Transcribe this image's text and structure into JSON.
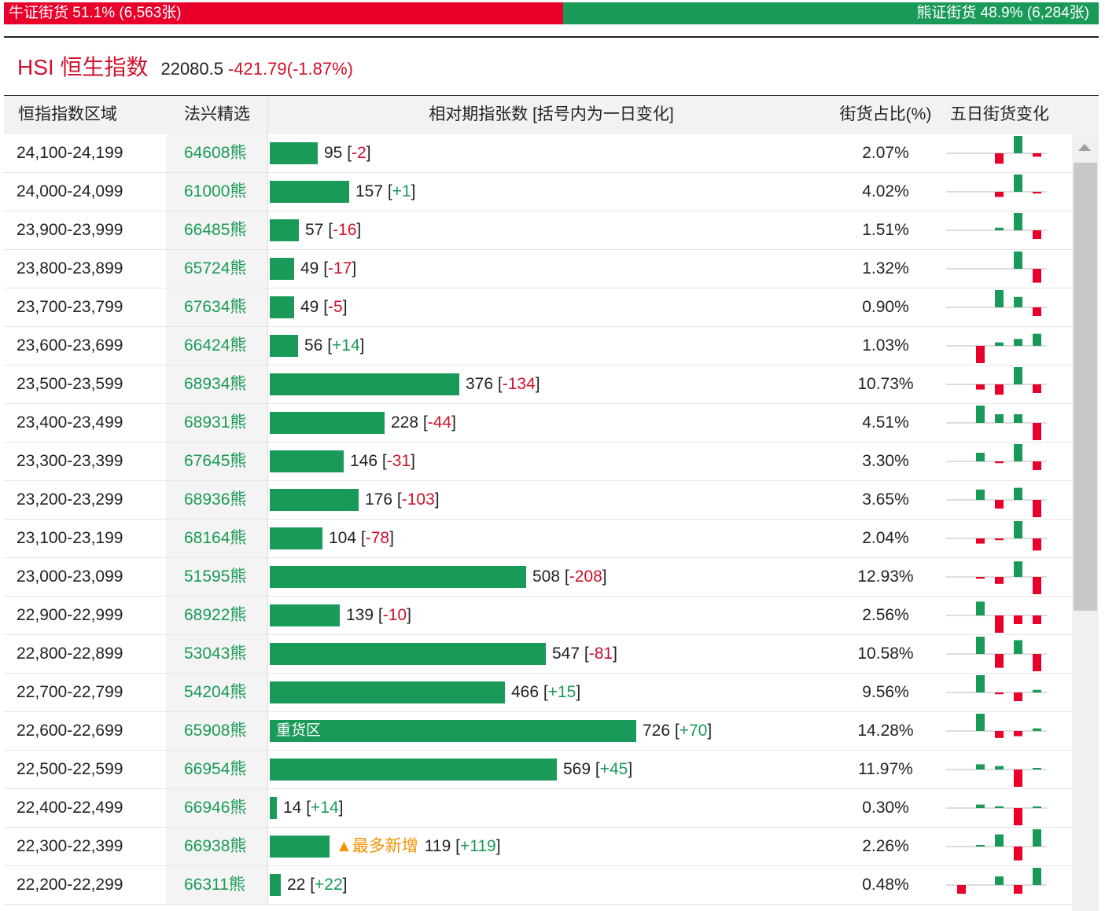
{
  "ratio": {
    "bull_label": "牛证街货 51.1% (6,563张)",
    "bear_label": "熊证街货 48.9% (6,284张)",
    "bull_pct": 51.1,
    "bull_color": "#e8002a",
    "bear_color": "#1a9a58"
  },
  "index": {
    "name": "HSI 恒生指数",
    "price": "22080.5",
    "change": "-421.79(-1.87%)"
  },
  "headers": {
    "range": "恒指指数区域",
    "stock": "法兴精选",
    "bar": "相对期指张数 [括号内为一日变化]",
    "pct": "街货占比(%)",
    "five": "五日街货变化"
  },
  "bar_scale_max": 726,
  "rows": [
    {
      "range": "24,100-24,199",
      "stock": "64608熊",
      "count": 95,
      "count_text": "95",
      "change": "-2",
      "pct": "2.07%",
      "five": [
        0,
        0,
        -0.6,
        1,
        -0.2
      ]
    },
    {
      "range": "24,000-24,099",
      "stock": "61000熊",
      "count": 157,
      "count_text": "157",
      "change": "+1",
      "pct": "4.02%",
      "five": [
        0,
        0,
        -0.3,
        1,
        -0.1
      ]
    },
    {
      "range": "23,900-23,999",
      "stock": "66485熊",
      "count": 57,
      "count_text": "57",
      "change": "-16",
      "pct": "1.51%",
      "five": [
        0,
        0,
        0.15,
        1,
        -0.5
      ]
    },
    {
      "range": "23,800-23,899",
      "stock": "65724熊",
      "count": 49,
      "count_text": "49",
      "change": "-17",
      "pct": "1.32%",
      "five": [
        0,
        0,
        0,
        1,
        -0.8
      ]
    },
    {
      "range": "23,700-23,799",
      "stock": "67634熊",
      "count": 49,
      "count_text": "49",
      "change": "-5",
      "pct": "0.90%",
      "five": [
        0,
        0,
        1,
        0.6,
        -0.5
      ]
    },
    {
      "range": "23,600-23,699",
      "stock": "66424熊",
      "count": 56,
      "count_text": "56",
      "change": "+14",
      "pct": "1.03%",
      "five": [
        0,
        -1,
        0.2,
        0.4,
        0.7
      ]
    },
    {
      "range": "23,500-23,599",
      "stock": "68934熊",
      "count": 376,
      "count_text": "376",
      "change": "-134",
      "pct": "10.73%",
      "five": [
        0,
        -0.3,
        -0.6,
        1,
        -0.5
      ]
    },
    {
      "range": "23,400-23,499",
      "stock": "68931熊",
      "count": 228,
      "count_text": "228",
      "change": "-44",
      "pct": "4.51%",
      "five": [
        0,
        1,
        0.5,
        0.5,
        -1
      ]
    },
    {
      "range": "23,300-23,399",
      "stock": "67645熊",
      "count": 146,
      "count_text": "146",
      "change": "-31",
      "pct": "3.30%",
      "five": [
        0,
        0.5,
        -0.1,
        1,
        -0.5
      ]
    },
    {
      "range": "23,200-23,299",
      "stock": "68936熊",
      "count": 176,
      "count_text": "176",
      "change": "-103",
      "pct": "3.65%",
      "five": [
        0,
        0.6,
        -0.5,
        0.7,
        -1
      ]
    },
    {
      "range": "23,100-23,199",
      "stock": "68164熊",
      "count": 104,
      "count_text": "104",
      "change": "-78",
      "pct": "2.04%",
      "five": [
        0,
        -0.3,
        -0.1,
        1,
        -0.7
      ]
    },
    {
      "range": "23,000-23,099",
      "stock": "51595熊",
      "count": 508,
      "count_text": "508",
      "change": "-208",
      "pct": "12.93%",
      "five": [
        0,
        -0.1,
        -0.4,
        0.9,
        -1
      ]
    },
    {
      "range": "22,900-22,999",
      "stock": "68922熊",
      "count": 139,
      "count_text": "139",
      "change": "-10",
      "pct": "2.56%",
      "five": [
        0,
        0.8,
        -1,
        -0.5,
        -0.5
      ]
    },
    {
      "range": "22,800-22,899",
      "stock": "53043熊",
      "count": 547,
      "count_text": "547",
      "change": "-81",
      "pct": "10.58%",
      "five": [
        0,
        1,
        -0.8,
        0.8,
        -1
      ]
    },
    {
      "range": "22,700-22,799",
      "stock": "54204熊",
      "count": 466,
      "count_text": "466",
      "change": "+15",
      "pct": "9.56%",
      "five": [
        0,
        1,
        -0.1,
        -0.5,
        0.15
      ]
    },
    {
      "range": "22,600-22,699",
      "stock": "65908熊",
      "count": 726,
      "count_text": "726",
      "change": "+70",
      "pct": "14.28%",
      "five": [
        0,
        1,
        -0.4,
        -0.3,
        0.15
      ],
      "tag": "重货区",
      "tag_inside": true
    },
    {
      "range": "22,500-22,599",
      "stock": "66954熊",
      "count": 569,
      "count_text": "569",
      "change": "+45",
      "pct": "11.97%",
      "five": [
        0,
        0.3,
        0.2,
        -1,
        0.05
      ]
    },
    {
      "range": "22,400-22,499",
      "stock": "66946熊",
      "count": 14,
      "count_text": "14",
      "change": "+14",
      "pct": "0.30%",
      "five": [
        0,
        0.2,
        0.1,
        -1,
        0.05
      ]
    },
    {
      "range": "22,300-22,399",
      "stock": "66938熊",
      "count": 119,
      "count_text": "119",
      "change": "+119",
      "pct": "2.26%",
      "five": [
        0,
        0.05,
        0.7,
        -0.8,
        1
      ],
      "tag": "▲最多新增"
    },
    {
      "range": "22,200-22,299",
      "stock": "66311熊",
      "count": 22,
      "count_text": "22",
      "change": "+22",
      "pct": "0.48%",
      "five": [
        -0.5,
        0,
        0.5,
        -0.5,
        1
      ]
    }
  ]
}
